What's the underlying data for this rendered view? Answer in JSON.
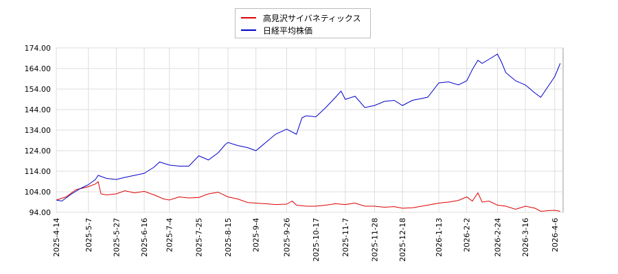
{
  "chart_data": {
    "type": "line",
    "title": "",
    "xlabel": "",
    "ylabel": "",
    "ylim": [
      94.0,
      174.0
    ],
    "y_ticks": [
      "94.00",
      "104.00",
      "114.00",
      "124.00",
      "134.00",
      "144.00",
      "154.00",
      "164.00",
      "174.00"
    ],
    "x_ticks": [
      "2025-4-14",
      "2025-5-7",
      "2025-5-27",
      "2025-6-16",
      "2025-7-4",
      "2025-7-25",
      "2025-8-15",
      "2025-9-4",
      "2025-9-26",
      "2025-10-17",
      "2025-11-7",
      "2025-11-28",
      "2025-12-18",
      "2026-1-13",
      "2026-2-2",
      "2026-2-24",
      "2026-3-16",
      "2026-4-6"
    ],
    "grid": true,
    "legend": "top-center",
    "series": [
      {
        "name": "高見沢サイバネティックス",
        "color": "#dd0000",
        "points": [
          [
            "2025-4-14",
            100.0
          ],
          [
            "2025-4-21",
            101.5
          ],
          [
            "2025-4-28",
            105.0
          ],
          [
            "2025-5-7",
            106.5
          ],
          [
            "2025-5-12",
            107.8
          ],
          [
            "2025-5-14",
            108.9
          ],
          [
            "2025-5-16",
            103.0
          ],
          [
            "2025-5-20",
            102.5
          ],
          [
            "2025-5-27",
            103.0
          ],
          [
            "2025-6-2",
            104.5
          ],
          [
            "2025-6-9",
            103.5
          ],
          [
            "2025-6-16",
            104.2
          ],
          [
            "2025-6-23",
            102.5
          ],
          [
            "2025-6-30",
            100.5
          ],
          [
            "2025-7-4",
            100.0
          ],
          [
            "2025-7-11",
            101.5
          ],
          [
            "2025-7-18",
            101.0
          ],
          [
            "2025-7-25",
            101.2
          ],
          [
            "2025-8-1",
            103.0
          ],
          [
            "2025-8-8",
            103.8
          ],
          [
            "2025-8-15",
            101.5
          ],
          [
            "2025-8-22",
            100.5
          ],
          [
            "2025-8-29",
            98.8
          ],
          [
            "2025-9-4",
            98.5
          ],
          [
            "2025-9-11",
            98.2
          ],
          [
            "2025-9-18",
            97.8
          ],
          [
            "2025-9-26",
            98.0
          ],
          [
            "2025-9-30",
            99.5
          ],
          [
            "2025-10-3",
            97.5
          ],
          [
            "2025-10-10",
            97.0
          ],
          [
            "2025-10-17",
            97.0
          ],
          [
            "2025-10-24",
            97.5
          ],
          [
            "2025-10-31",
            98.2
          ],
          [
            "2025-11-7",
            97.8
          ],
          [
            "2025-11-14",
            98.5
          ],
          [
            "2025-11-21",
            97.0
          ],
          [
            "2025-11-28",
            97.0
          ],
          [
            "2025-12-5",
            96.5
          ],
          [
            "2025-12-12",
            96.8
          ],
          [
            "2025-12-18",
            96.0
          ],
          [
            "2025-12-25",
            96.2
          ],
          [
            "2026-1-5",
            97.5
          ],
          [
            "2026-1-13",
            98.5
          ],
          [
            "2026-1-20",
            99.0
          ],
          [
            "2026-1-27",
            99.8
          ],
          [
            "2026-2-2",
            101.5
          ],
          [
            "2026-2-6",
            99.5
          ],
          [
            "2026-2-10",
            103.5
          ],
          [
            "2026-2-13",
            99.0
          ],
          [
            "2026-2-18",
            99.5
          ],
          [
            "2026-2-24",
            97.5
          ],
          [
            "2026-3-2",
            97.0
          ],
          [
            "2026-3-9",
            95.5
          ],
          [
            "2026-3-16",
            97.0
          ],
          [
            "2026-3-23",
            96.0
          ],
          [
            "2026-3-27",
            94.5
          ],
          [
            "2026-4-1",
            94.8
          ],
          [
            "2026-4-6",
            95.0
          ],
          [
            "2026-4-10",
            94.5
          ]
        ]
      },
      {
        "name": "日経平均株価",
        "color": "#0000cc",
        "points": [
          [
            "2025-4-14",
            100.0
          ],
          [
            "2025-4-18",
            99.5
          ],
          [
            "2025-4-25",
            103.0
          ],
          [
            "2025-5-1",
            105.5
          ],
          [
            "2025-5-7",
            107.5
          ],
          [
            "2025-5-12",
            110.0
          ],
          [
            "2025-5-14",
            112.0
          ],
          [
            "2025-5-20",
            110.5
          ],
          [
            "2025-5-27",
            110.0
          ],
          [
            "2025-6-2",
            111.0
          ],
          [
            "2025-6-9",
            112.0
          ],
          [
            "2025-6-16",
            113.0
          ],
          [
            "2025-6-23",
            116.0
          ],
          [
            "2025-6-27",
            118.5
          ],
          [
            "2025-7-4",
            117.0
          ],
          [
            "2025-7-11",
            116.5
          ],
          [
            "2025-7-18",
            116.5
          ],
          [
            "2025-7-25",
            121.5
          ],
          [
            "2025-8-1",
            119.5
          ],
          [
            "2025-8-8",
            123.0
          ],
          [
            "2025-8-13",
            127.0
          ],
          [
            "2025-8-15",
            128.0
          ],
          [
            "2025-8-22",
            126.5
          ],
          [
            "2025-8-29",
            125.5
          ],
          [
            "2025-9-4",
            124.0
          ],
          [
            "2025-9-11",
            128.0
          ],
          [
            "2025-9-18",
            132.0
          ],
          [
            "2025-9-26",
            134.5
          ],
          [
            "2025-10-3",
            132.0
          ],
          [
            "2025-10-7",
            140.0
          ],
          [
            "2025-10-10",
            141.0
          ],
          [
            "2025-10-17",
            140.5
          ],
          [
            "2025-10-24",
            145.0
          ],
          [
            "2025-10-31",
            150.0
          ],
          [
            "2025-11-4",
            153.0
          ],
          [
            "2025-11-7",
            149.0
          ],
          [
            "2025-11-14",
            150.5
          ],
          [
            "2025-11-21",
            145.0
          ],
          [
            "2025-11-28",
            146.0
          ],
          [
            "2025-12-5",
            148.0
          ],
          [
            "2025-12-12",
            148.5
          ],
          [
            "2025-12-18",
            146.0
          ],
          [
            "2025-12-25",
            148.5
          ],
          [
            "2026-1-5",
            150.0
          ],
          [
            "2026-1-13",
            157.0
          ],
          [
            "2026-1-20",
            157.5
          ],
          [
            "2026-1-27",
            156.0
          ],
          [
            "2026-2-2",
            158.0
          ],
          [
            "2026-2-6",
            163.5
          ],
          [
            "2026-2-10",
            168.0
          ],
          [
            "2026-2-13",
            166.5
          ],
          [
            "2026-2-18",
            168.5
          ],
          [
            "2026-2-24",
            171.0
          ],
          [
            "2026-2-27",
            167.0
          ],
          [
            "2026-3-2",
            162.0
          ],
          [
            "2026-3-9",
            158.0
          ],
          [
            "2026-3-16",
            156.0
          ],
          [
            "2026-3-23",
            152.0
          ],
          [
            "2026-3-27",
            150.0
          ],
          [
            "2026-4-1",
            155.0
          ],
          [
            "2026-4-6",
            160.0
          ],
          [
            "2026-4-10",
            166.5
          ]
        ]
      }
    ]
  }
}
